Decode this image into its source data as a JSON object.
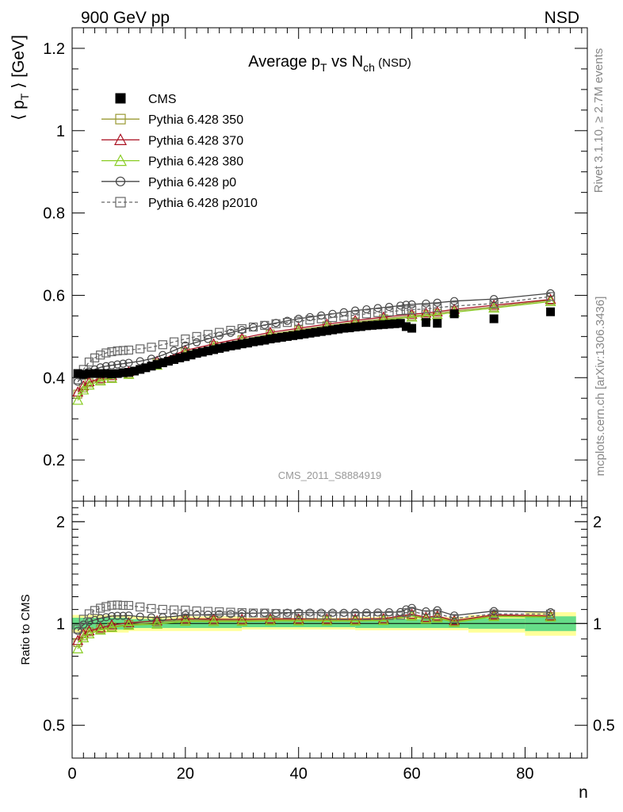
{
  "header": {
    "left": "900 GeV pp",
    "right": "NSD"
  },
  "side_texts": {
    "rivet": "Rivet 3.1.10, ≥ 2.7M events",
    "mcplots": "mcplots.cern.ch [arXiv:1306.3436]"
  },
  "chart_data": {
    "type": "scatter",
    "title_main": "Average p",
    "title_sub_t": "T",
    "title_vs": " vs N",
    "title_sub_ch": "ch",
    "title_suffix": " (NSD)",
    "ylabel_main": "⟨ p",
    "ylabel_sub": "T",
    "ylabel_unit": " ⟩ [GeV]",
    "xlabel": "n",
    "ratio_ylabel": "Ratio to CMS",
    "watermark": "CMS_2011_S8884919",
    "xlim": [
      0,
      91
    ],
    "ylim": [
      0.1,
      1.25
    ],
    "ratio_ylim": [
      0.4,
      2.3
    ],
    "ratio_log": true,
    "xticks": [
      0,
      20,
      40,
      60,
      80
    ],
    "xticklabels": [
      "0",
      "20",
      "40",
      "60",
      "80"
    ],
    "yticks": [
      0.2,
      0.4,
      0.6,
      0.8,
      1,
      1.2
    ],
    "yticklabels": [
      "0.2",
      "0.4",
      "0.6",
      "0.8",
      "1",
      "1.2"
    ],
    "ratio_yticks": [
      0.5,
      1,
      2
    ],
    "ratio_yticklabels": [
      "0.5",
      "1",
      "2"
    ],
    "legend": {
      "placement": "top-left",
      "entries": [
        "CMS",
        "Pythia 6.428 350",
        "Pythia 6.428 370",
        "Pythia 6.428 380",
        "Pythia 6.428 p0",
        "Pythia 6.428 p2010"
      ]
    },
    "cms_x": [
      1,
      2,
      3,
      4,
      5,
      6,
      7,
      8,
      9,
      10,
      11,
      12,
      13,
      14,
      15,
      16,
      17,
      18,
      19,
      20,
      21,
      22,
      23,
      24,
      25,
      26,
      27,
      28,
      29,
      30,
      31,
      32,
      33,
      34,
      35,
      36,
      37,
      38,
      39,
      40,
      41,
      42,
      43,
      44,
      45,
      46,
      47,
      48,
      49,
      50,
      51,
      52,
      53,
      54,
      55,
      56,
      57,
      58,
      59,
      60,
      62.5,
      64.5,
      67.5,
      74.5,
      84.5
    ],
    "cms_y": [
      0.41,
      0.408,
      0.41,
      0.41,
      0.41,
      0.41,
      0.409,
      0.41,
      0.412,
      0.413,
      0.416,
      0.42,
      0.424,
      0.428,
      0.432,
      0.436,
      0.44,
      0.444,
      0.448,
      0.451,
      0.455,
      0.459,
      0.462,
      0.465,
      0.468,
      0.471,
      0.474,
      0.477,
      0.479,
      0.482,
      0.484,
      0.487,
      0.489,
      0.491,
      0.494,
      0.496,
      0.498,
      0.5,
      0.502,
      0.504,
      0.506,
      0.508,
      0.51,
      0.512,
      0.514,
      0.516,
      0.518,
      0.52,
      0.521,
      0.523,
      0.524,
      0.526,
      0.527,
      0.528,
      0.529,
      0.53,
      0.531,
      0.532,
      0.524,
      0.52,
      0.534,
      0.532,
      0.555,
      0.543,
      0.56
    ],
    "cms_ratio_band": {
      "x_edges": [
        0,
        10,
        30,
        50,
        70,
        80,
        89
      ],
      "green_half": [
        0.04,
        0.03,
        0.025,
        0.03,
        0.035,
        0.05
      ],
      "yellow_half": [
        0.06,
        0.05,
        0.04,
        0.045,
        0.06,
        0.08
      ]
    },
    "series": [
      {
        "name": "Pythia 6.428 350",
        "marker": "square-open",
        "color": "#999933",
        "dash": "",
        "x": [
          1,
          2,
          3,
          5,
          7,
          10,
          15,
          20,
          25,
          30,
          35,
          40,
          45,
          50,
          55,
          60,
          62.5,
          64.5,
          67.5,
          74.5,
          84.5
        ],
        "y": [
          0.36,
          0.375,
          0.387,
          0.395,
          0.4,
          0.41,
          0.435,
          0.462,
          0.478,
          0.492,
          0.506,
          0.516,
          0.526,
          0.535,
          0.543,
          0.55,
          0.553,
          0.556,
          0.562,
          0.572,
          0.588
        ]
      },
      {
        "name": "Pythia 6.428 370",
        "marker": "triangle-open",
        "color": "#aa1122",
        "dash": "",
        "x": [
          1,
          2,
          3,
          5,
          7,
          10,
          15,
          20,
          25,
          30,
          35,
          40,
          45,
          50,
          55,
          60,
          62.5,
          64.5,
          67.5,
          74.5,
          84.5
        ],
        "y": [
          0.365,
          0.38,
          0.39,
          0.398,
          0.405,
          0.415,
          0.44,
          0.466,
          0.482,
          0.496,
          0.51,
          0.52,
          0.53,
          0.539,
          0.547,
          0.554,
          0.557,
          0.56,
          0.566,
          0.576,
          0.59
        ]
      },
      {
        "name": "Pythia 6.428 380",
        "marker": "triangle-open",
        "color": "#88cc22",
        "dash": "",
        "x": [
          1,
          2,
          3,
          5,
          7,
          10,
          15,
          20,
          25,
          30,
          35,
          40,
          45,
          50,
          55,
          60,
          62.5,
          64.5,
          67.5,
          74.5,
          84.5
        ],
        "y": [
          0.345,
          0.37,
          0.382,
          0.392,
          0.398,
          0.408,
          0.43,
          0.458,
          0.474,
          0.489,
          0.503,
          0.513,
          0.523,
          0.532,
          0.54,
          0.547,
          0.55,
          0.553,
          0.559,
          0.569,
          0.585
        ]
      },
      {
        "name": "Pythia 6.428 p0",
        "marker": "circle-open",
        "color": "#444444",
        "dash": "",
        "x": [
          1,
          2,
          3,
          4,
          5,
          6,
          7,
          8,
          9,
          10,
          12,
          14,
          16,
          18,
          20,
          22,
          24,
          26,
          28,
          30,
          32,
          34,
          36,
          38,
          40,
          42,
          44,
          46,
          48,
          50,
          52,
          54,
          56,
          58,
          59,
          60,
          62.5,
          64.5,
          67.5,
          74.5,
          84.5
        ],
        "y": [
          0.39,
          0.405,
          0.415,
          0.42,
          0.425,
          0.428,
          0.43,
          0.432,
          0.434,
          0.436,
          0.44,
          0.446,
          0.455,
          0.466,
          0.478,
          0.486,
          0.494,
          0.502,
          0.509,
          0.516,
          0.522,
          0.528,
          0.533,
          0.538,
          0.543,
          0.547,
          0.551,
          0.555,
          0.559,
          0.563,
          0.566,
          0.569,
          0.572,
          0.575,
          0.577,
          0.578,
          0.58,
          0.582,
          0.586,
          0.591,
          0.605
        ]
      },
      {
        "name": "Pythia 6.428 p2010",
        "marker": "square-open",
        "color": "#666666",
        "dash": "4,3",
        "x": [
          1,
          2,
          3,
          4,
          5,
          6,
          7,
          8,
          9,
          10,
          12,
          14,
          16,
          18,
          20,
          22,
          24,
          26,
          28,
          30,
          32,
          34,
          36,
          38,
          40,
          42,
          44,
          46,
          48,
          50,
          52,
          54,
          56,
          58,
          59,
          60,
          62.5,
          64.5,
          67.5,
          74.5,
          84.5
        ],
        "y": [
          0.395,
          0.42,
          0.438,
          0.448,
          0.455,
          0.46,
          0.463,
          0.465,
          0.466,
          0.467,
          0.47,
          0.474,
          0.48,
          0.487,
          0.494,
          0.5,
          0.505,
          0.51,
          0.515,
          0.519,
          0.523,
          0.527,
          0.531,
          0.534,
          0.537,
          0.54,
          0.543,
          0.546,
          0.549,
          0.552,
          0.555,
          0.558,
          0.56,
          0.563,
          0.564,
          0.565,
          0.567,
          0.57,
          0.574,
          0.58,
          0.597
        ]
      }
    ]
  }
}
